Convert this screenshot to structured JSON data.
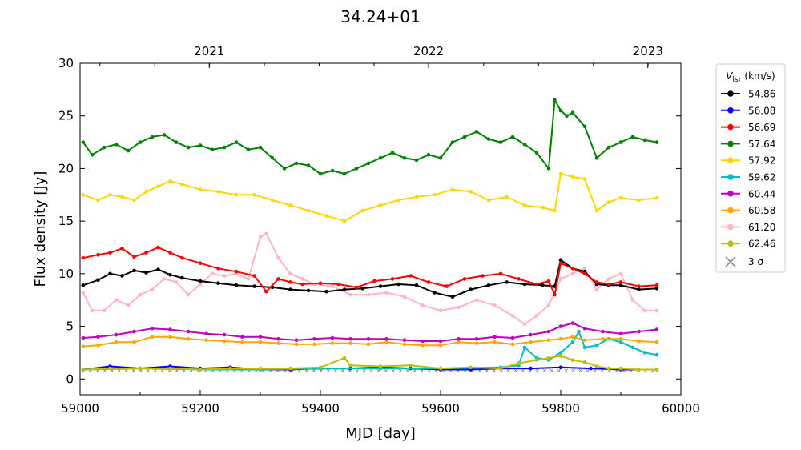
{
  "chart_data": {
    "type": "line",
    "title": "34.24+01",
    "xlabel": "MJD [day]",
    "ylabel": "Flux density [Jy]",
    "xlim": [
      59000,
      60000
    ],
    "ylim": [
      -1.5,
      30
    ],
    "xticks": [
      59000,
      59200,
      59400,
      59600,
      59800,
      60000
    ],
    "yticks": [
      0,
      5,
      10,
      15,
      20,
      25,
      30
    ],
    "top_axis_ticks": [
      {
        "x": 59215,
        "label": "2021"
      },
      {
        "x": 59580,
        "label": "2022"
      },
      {
        "x": 59945,
        "label": "2023"
      }
    ],
    "legend": {
      "title": "V_lsr (km/s)",
      "title_main": "V",
      "title_sub": "lsr",
      "title_units": "(km/s)",
      "placement": "outside-right",
      "sigma_label": "3 σ",
      "sigma_color": "#808080"
    },
    "series": [
      {
        "name": "54.86",
        "color": "#000000",
        "x": [
          59005,
          59030,
          59050,
          59070,
          59090,
          59110,
          59130,
          59150,
          59170,
          59200,
          59230,
          59260,
          59290,
          59320,
          59350,
          59380,
          59410,
          59440,
          59470,
          59500,
          59530,
          59560,
          59590,
          59620,
          59650,
          59680,
          59710,
          59740,
          59770,
          59790,
          59800,
          59820,
          59840,
          59860,
          59880,
          59900,
          59930,
          59960
        ],
        "y": [
          8.9,
          9.4,
          10.0,
          9.8,
          10.3,
          10.1,
          10.4,
          9.9,
          9.6,
          9.3,
          9.1,
          8.9,
          8.8,
          8.7,
          8.5,
          8.4,
          8.3,
          8.5,
          8.6,
          8.8,
          9.0,
          8.9,
          8.2,
          7.8,
          8.5,
          8.9,
          9.2,
          9.0,
          8.9,
          8.8,
          11.3,
          10.5,
          10.2,
          9.0,
          8.9,
          8.9,
          8.5,
          8.6
        ]
      },
      {
        "name": "56.08",
        "color": "#0000ff",
        "x": [
          59005,
          59050,
          59100,
          59150,
          59200,
          59250,
          59300,
          59350,
          59400,
          59450,
          59500,
          59550,
          59600,
          59650,
          59700,
          59750,
          59800,
          59850,
          59900,
          59960
        ],
        "y": [
          0.9,
          1.2,
          1.0,
          1.2,
          1.0,
          1.1,
          0.9,
          0.9,
          1.0,
          1.0,
          1.1,
          1.0,
          0.9,
          0.9,
          1.0,
          1.0,
          1.1,
          1.0,
          0.9,
          0.9
        ]
      },
      {
        "name": "56.69",
        "color": "#ff0000",
        "x": [
          59005,
          59030,
          59050,
          59070,
          59090,
          59110,
          59130,
          59150,
          59170,
          59200,
          59230,
          59260,
          59290,
          59310,
          59330,
          59350,
          59370,
          59400,
          59430,
          59460,
          59490,
          59520,
          59550,
          59580,
          59610,
          59640,
          59670,
          59700,
          59730,
          59760,
          59780,
          59790,
          59800,
          59820,
          59840,
          59860,
          59880,
          59900,
          59930,
          59960
        ],
        "y": [
          11.5,
          11.8,
          12.0,
          12.4,
          11.6,
          12.0,
          12.5,
          12.0,
          11.5,
          11.0,
          10.5,
          10.2,
          9.8,
          8.3,
          9.5,
          9.2,
          9.0,
          9.1,
          9.0,
          8.7,
          9.3,
          9.5,
          9.8,
          9.2,
          8.8,
          9.5,
          9.8,
          10.0,
          9.5,
          9.0,
          9.3,
          8.0,
          11.0,
          10.5,
          10.0,
          9.2,
          9.0,
          9.2,
          8.8,
          8.9
        ]
      },
      {
        "name": "57.64",
        "color": "#008000",
        "x": [
          59005,
          59020,
          59040,
          59060,
          59080,
          59100,
          59120,
          59140,
          59160,
          59180,
          59200,
          59220,
          59240,
          59260,
          59280,
          59300,
          59320,
          59340,
          59360,
          59380,
          59400,
          59420,
          59440,
          59460,
          59480,
          59500,
          59520,
          59540,
          59560,
          59580,
          59600,
          59620,
          59640,
          59660,
          59680,
          59700,
          59720,
          59740,
          59760,
          59780,
          59790,
          59800,
          59810,
          59820,
          59840,
          59860,
          59880,
          59900,
          59920,
          59940,
          59960
        ],
        "y": [
          22.5,
          21.3,
          22.0,
          22.3,
          21.7,
          22.5,
          23.0,
          23.2,
          22.5,
          22.0,
          22.2,
          21.8,
          22.0,
          22.5,
          21.8,
          22.0,
          21.0,
          20.0,
          20.5,
          20.3,
          19.5,
          19.8,
          19.5,
          20.0,
          20.5,
          21.0,
          21.5,
          21.0,
          20.8,
          21.3,
          21.0,
          22.5,
          23.0,
          23.5,
          22.8,
          22.5,
          23.0,
          22.3,
          21.5,
          20.0,
          26.5,
          25.5,
          25.0,
          25.3,
          24.0,
          21.0,
          22.0,
          22.5,
          23.0,
          22.7,
          22.5
        ]
      },
      {
        "name": "57.92",
        "color": "#ffd700",
        "x": [
          59005,
          59030,
          59050,
          59070,
          59090,
          59110,
          59130,
          59150,
          59170,
          59200,
          59230,
          59260,
          59290,
          59320,
          59350,
          59380,
          59410,
          59440,
          59470,
          59500,
          59530,
          59560,
          59590,
          59620,
          59650,
          59680,
          59710,
          59740,
          59770,
          59790,
          59800,
          59820,
          59840,
          59860,
          59880,
          59900,
          59930,
          59960
        ],
        "y": [
          17.5,
          17.0,
          17.5,
          17.3,
          17.0,
          17.8,
          18.3,
          18.8,
          18.5,
          18.0,
          17.8,
          17.5,
          17.5,
          17.0,
          16.5,
          16.0,
          15.5,
          15.0,
          16.0,
          16.5,
          17.0,
          17.3,
          17.5,
          18.0,
          17.8,
          17.0,
          17.3,
          16.5,
          16.3,
          16.0,
          19.5,
          19.2,
          19.0,
          16.0,
          16.8,
          17.2,
          17.0,
          17.2
        ]
      },
      {
        "name": "59.62",
        "color": "#00bfbf",
        "x": [
          59005,
          59100,
          59200,
          59300,
          59400,
          59500,
          59600,
          59700,
          59730,
          59740,
          59760,
          59780,
          59800,
          59820,
          59830,
          59840,
          59860,
          59880,
          59900,
          59920,
          59940,
          59960
        ],
        "y": [
          0.9,
          1.0,
          0.9,
          0.9,
          1.0,
          1.0,
          1.0,
          1.1,
          1.3,
          3.0,
          2.0,
          1.8,
          2.5,
          3.5,
          4.5,
          3.0,
          3.2,
          3.8,
          3.5,
          3.0,
          2.5,
          2.3
        ]
      },
      {
        "name": "60.44",
        "color": "#bf00bf",
        "x": [
          59005,
          59030,
          59060,
          59090,
          59120,
          59150,
          59180,
          59210,
          59240,
          59270,
          59300,
          59330,
          59360,
          59390,
          59420,
          59450,
          59480,
          59510,
          59540,
          59570,
          59600,
          59630,
          59660,
          59690,
          59720,
          59750,
          59780,
          59800,
          59820,
          59840,
          59870,
          59900,
          59930,
          59960
        ],
        "y": [
          3.9,
          4.0,
          4.2,
          4.5,
          4.8,
          4.7,
          4.5,
          4.3,
          4.2,
          4.0,
          4.0,
          3.8,
          3.7,
          3.8,
          3.9,
          3.8,
          3.8,
          3.8,
          3.7,
          3.6,
          3.6,
          3.8,
          3.8,
          4.0,
          3.9,
          4.2,
          4.5,
          5.0,
          5.3,
          4.8,
          4.5,
          4.3,
          4.5,
          4.7
        ]
      },
      {
        "name": "60.58",
        "color": "#ffa500",
        "x": [
          59005,
          59030,
          59060,
          59090,
          59120,
          59150,
          59180,
          59210,
          59240,
          59270,
          59300,
          59330,
          59360,
          59390,
          59420,
          59450,
          59480,
          59510,
          59540,
          59570,
          59600,
          59630,
          59660,
          59690,
          59720,
          59750,
          59780,
          59800,
          59820,
          59840,
          59870,
          59900,
          59930,
          59960
        ],
        "y": [
          3.1,
          3.2,
          3.5,
          3.5,
          4.0,
          4.0,
          3.8,
          3.7,
          3.6,
          3.5,
          3.5,
          3.4,
          3.3,
          3.3,
          3.4,
          3.4,
          3.3,
          3.5,
          3.3,
          3.2,
          3.2,
          3.5,
          3.4,
          3.5,
          3.3,
          3.5,
          3.7,
          3.8,
          4.0,
          3.7,
          3.8,
          3.8,
          3.6,
          3.5
        ]
      },
      {
        "name": "61.20",
        "color": "#ffb6c1",
        "x": [
          59005,
          59020,
          59040,
          59060,
          59080,
          59100,
          59120,
          59140,
          59160,
          59180,
          59200,
          59220,
          59240,
          59260,
          59280,
          59300,
          59310,
          59330,
          59350,
          59370,
          59390,
          59420,
          59450,
          59480,
          59510,
          59540,
          59570,
          59600,
          59630,
          59660,
          59690,
          59720,
          59740,
          59760,
          59780,
          59800,
          59820,
          59840,
          59860,
          59880,
          59900,
          59920,
          59940,
          59960
        ],
        "y": [
          8.2,
          6.5,
          6.5,
          7.5,
          7.0,
          8.0,
          8.5,
          9.5,
          9.2,
          8.0,
          9.0,
          10.0,
          9.8,
          10.0,
          9.5,
          13.5,
          13.8,
          11.5,
          10.0,
          9.5,
          9.0,
          8.8,
          8.0,
          8.0,
          8.2,
          7.8,
          7.0,
          6.5,
          6.8,
          7.5,
          7.0,
          6.0,
          5.2,
          6.0,
          7.0,
          9.5,
          10.0,
          10.5,
          8.5,
          9.5,
          10.0,
          7.5,
          6.5,
          6.5
        ]
      },
      {
        "name": "62.46",
        "color": "#bfbf00",
        "x": [
          59005,
          59050,
          59100,
          59150,
          59200,
          59250,
          59300,
          59350,
          59400,
          59440,
          59450,
          59500,
          59550,
          59600,
          59650,
          59700,
          59730,
          59760,
          59780,
          59800,
          59820,
          59840,
          59860,
          59880,
          59900,
          59930,
          59960
        ],
        "y": [
          0.9,
          1.0,
          1.0,
          1.0,
          0.9,
          1.0,
          1.0,
          1.0,
          1.1,
          2.0,
          1.3,
          1.2,
          1.3,
          1.0,
          1.1,
          1.0,
          1.5,
          1.8,
          2.0,
          2.2,
          1.8,
          1.6,
          1.2,
          1.0,
          1.0,
          0.9,
          0.9
        ]
      }
    ],
    "sigma_level": {
      "name": "3 σ",
      "x": [
        59005,
        59960
      ],
      "y": [
        0.8,
        0.8
      ]
    }
  }
}
